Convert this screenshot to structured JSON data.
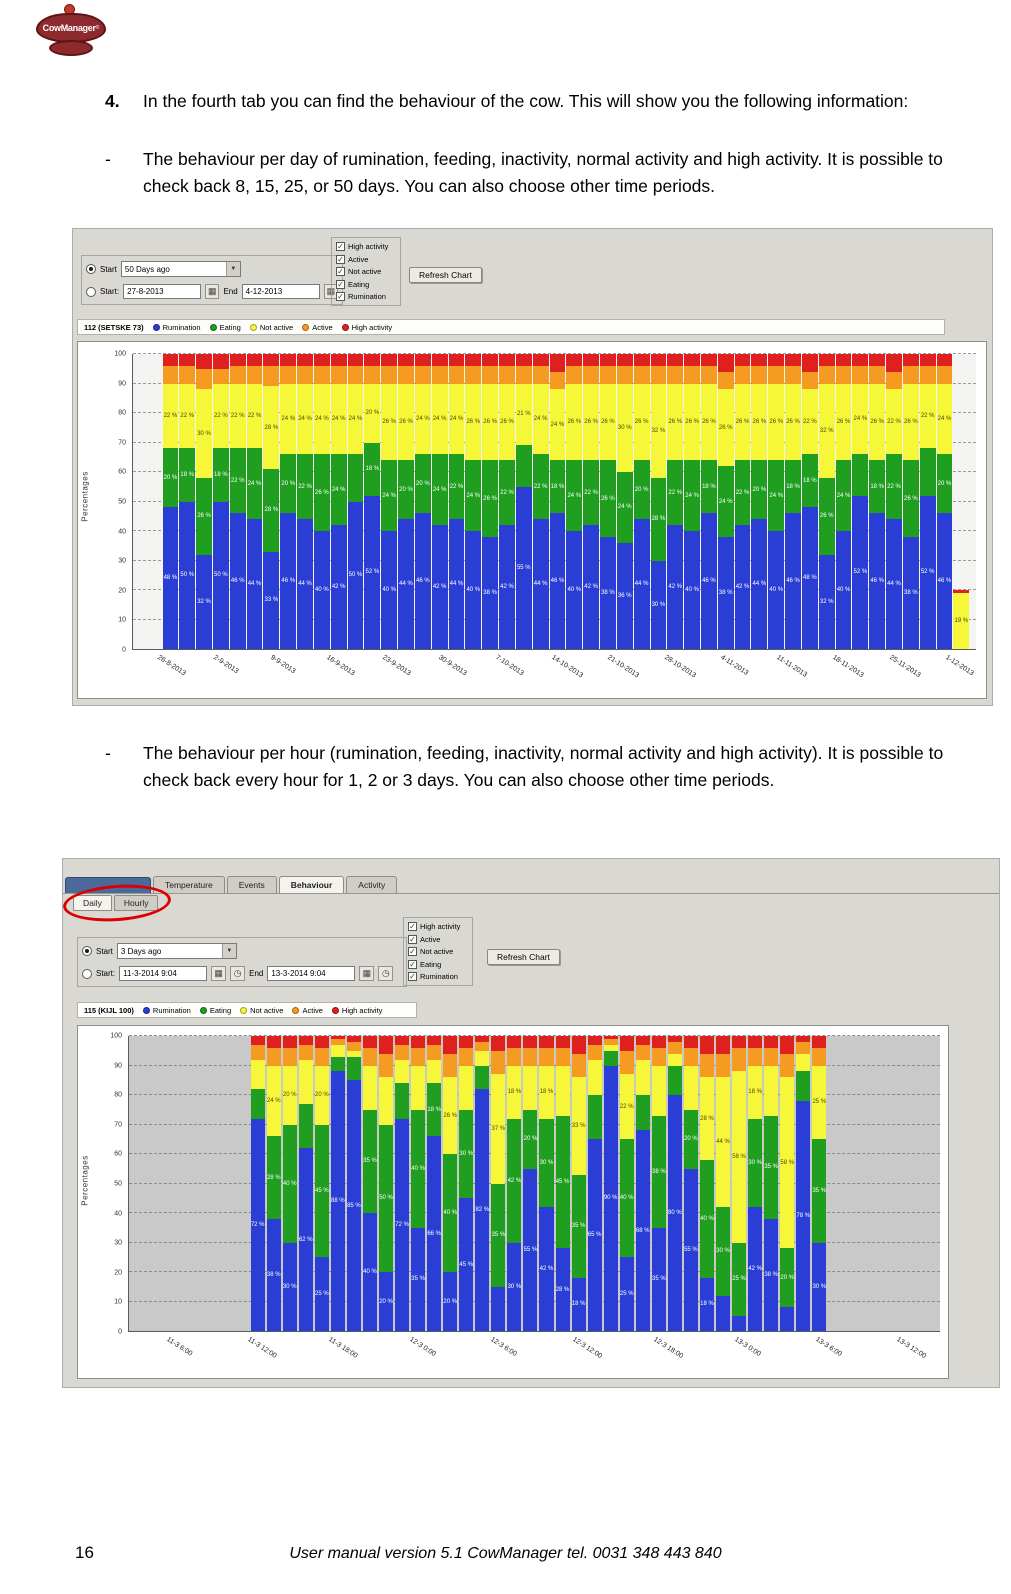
{
  "page": {
    "number": "16",
    "footer_text": "User manual version 5.1 CowManager tel. 0031 348 443 840"
  },
  "logo": {
    "text": "CowManager",
    "registered": "®"
  },
  "icons": {
    "checkmark": "✓",
    "dropdown_arrow": "▼",
    "calendar": "▦",
    "clock": "◷"
  },
  "step4": {
    "number": "4.",
    "dash": "-",
    "text": "In the fourth tab you can find the behaviour of the cow. This will show you the following information:",
    "bullet1": "The behaviour per day of rumination, feeding, inactivity, normal activity and high activity. It is possible to check back 8, 15, 25, or 50 days. You can also choose other time periods.",
    "bullet2": "The behaviour per hour (rumination, feeding, inactivity, normal activity and high activity). It is possible to check back every hour for 1, 2 or 3 days. You can also choose other time periods."
  },
  "daily_screenshot": {
    "period": {
      "radio_label": "Start",
      "period_value": "50 Days ago",
      "start_label": "Start:",
      "start_value": "27-8-2013",
      "end_label": "End",
      "end_value": "4-12-2013"
    },
    "filters": [
      "High activity",
      "Active",
      "Not active",
      "Eating",
      "Rumination"
    ],
    "refresh_button": "Refresh Chart",
    "legend_title": "112 (SETSKE 73)",
    "legend_items": [
      "Rumination",
      "Eating",
      "Not active",
      "Active",
      "High activity"
    ]
  },
  "hourly_screenshot": {
    "tabs": [
      "Temperature",
      "Events",
      "Behaviour",
      "Activity"
    ],
    "subtabs": [
      "Daily",
      "Hourly"
    ],
    "period": {
      "radio_label": "Start",
      "period_value": "3 Days ago",
      "start_label": "Start:",
      "start_value": "11-3-2014 9:04",
      "end_label": "End",
      "end_value": "13-3-2014 9:04"
    },
    "filters": [
      "High activity",
      "Active",
      "Not active",
      "Eating",
      "Rumination"
    ],
    "refresh_button": "Refresh Chart",
    "legend_title": "115 (KIJL 100)",
    "legend_items": [
      "Rumination",
      "Eating",
      "Not active",
      "Active",
      "High activity"
    ]
  },
  "chart_data": [
    {
      "type": "bar",
      "stacked": true,
      "title": "112 (SETSKE 73) — behaviour per day",
      "xlabel": "",
      "ylabel": "Percentages",
      "ylim": [
        0,
        100
      ],
      "yticks": [
        0,
        10,
        20,
        30,
        40,
        50,
        60,
        70,
        80,
        90,
        100
      ],
      "grid": true,
      "legend_position": "top",
      "xticklabels": [
        "26-8-2013",
        "2-9-2013",
        "9-9-2013",
        "16-9-2013",
        "23-9-2013",
        "30-9-2013",
        "7-10-2013",
        "14-10-2013",
        "21-10-2013",
        "28-10-2013",
        "4-11-2013",
        "11-11-2013",
        "18-11-2013",
        "25-11-2013",
        "1-12-2013"
      ],
      "series": [
        {
          "name": "Rumination",
          "slug": "rumination",
          "color": "#2a3ed6",
          "label_color": "#ffffff",
          "values": [
            48,
            50,
            32,
            50,
            46,
            44,
            33,
            46,
            44,
            40,
            42,
            50,
            52,
            40,
            44,
            46,
            42,
            44,
            40,
            38,
            42,
            55,
            44,
            46,
            40,
            42,
            38,
            36,
            44,
            30,
            42,
            40,
            46,
            38,
            42,
            44,
            40,
            46,
            48,
            32,
            40,
            52,
            46,
            44,
            38,
            52,
            46,
            0
          ]
        },
        {
          "name": "Eating",
          "slug": "eating",
          "color": "#1f9e1f",
          "label_color": "#ffffff",
          "values": [
            20,
            18,
            26,
            18,
            22,
            24,
            28,
            20,
            22,
            26,
            24,
            16,
            18,
            24,
            20,
            20,
            24,
            22,
            24,
            26,
            22,
            14,
            22,
            18,
            24,
            22,
            26,
            24,
            20,
            28,
            22,
            24,
            18,
            24,
            22,
            20,
            24,
            18,
            18,
            26,
            24,
            14,
            18,
            22,
            26,
            16,
            20,
            0
          ]
        },
        {
          "name": "Not active",
          "slug": "not-active",
          "color": "#f7f73a",
          "label_color": "#4a4a00",
          "values": [
            22,
            22,
            30,
            22,
            22,
            22,
            28,
            24,
            24,
            24,
            24,
            24,
            20,
            26,
            26,
            24,
            24,
            24,
            26,
            26,
            26,
            21,
            24,
            24,
            26,
            26,
            26,
            30,
            26,
            32,
            26,
            26,
            26,
            26,
            26,
            26,
            26,
            26,
            22,
            32,
            26,
            24,
            26,
            22,
            26,
            22,
            24,
            19
          ]
        },
        {
          "name": "Active",
          "slug": "active",
          "color": "#f59b22",
          "label_color": "#5a3000",
          "values": [
            6,
            6,
            7,
            5,
            6,
            6,
            7,
            6,
            6,
            6,
            6,
            6,
            6,
            6,
            6,
            6,
            6,
            6,
            6,
            6,
            6,
            6,
            6,
            6,
            6,
            6,
            6,
            6,
            6,
            6,
            6,
            6,
            6,
            6,
            6,
            6,
            6,
            6,
            6,
            6,
            6,
            6,
            6,
            6,
            6,
            6,
            6,
            0
          ]
        },
        {
          "name": "High activity",
          "slug": "high-activity",
          "color": "#e01f1f",
          "label_color": "#ffffff",
          "values": [
            4,
            4,
            5,
            5,
            4,
            4,
            4,
            4,
            4,
            4,
            4,
            4,
            4,
            4,
            4,
            4,
            4,
            4,
            4,
            4,
            4,
            4,
            4,
            6,
            4,
            4,
            4,
            4,
            4,
            4,
            4,
            4,
            4,
            6,
            4,
            4,
            4,
            4,
            6,
            4,
            4,
            4,
            4,
            6,
            4,
            4,
            4,
            1
          ]
        }
      ]
    },
    {
      "type": "bar",
      "stacked": true,
      "title": "115 (KIJL 100) — behaviour per hour",
      "xlabel": "",
      "ylabel": "Percentages",
      "ylim": [
        0,
        100
      ],
      "yticks": [
        0,
        10,
        20,
        30,
        40,
        50,
        60,
        70,
        80,
        90,
        100
      ],
      "grid": true,
      "legend_position": "top",
      "xticklabels": [
        "11-3 6:00",
        "11-3 12:00",
        "11-3 18:00",
        "12-3 0:00",
        "12-3 6:00",
        "12-3 12:00",
        "12-3 18:00",
        "13-3 0:00",
        "13-3 6:00",
        "13-3 12:00"
      ],
      "series": [
        {
          "name": "Rumination",
          "slug": "rumination",
          "color": "#2a3ed6",
          "label_color": "#ffffff",
          "values": [
            72,
            38,
            30,
            62,
            25,
            88,
            85,
            40,
            20,
            72,
            35,
            66,
            20,
            45,
            82,
            15,
            30,
            55,
            42,
            28,
            18,
            65,
            90,
            25,
            68,
            35,
            80,
            55,
            18,
            12,
            5,
            42,
            38,
            8,
            78,
            30
          ]
        },
        {
          "name": "Eating",
          "slug": "eating",
          "color": "#1f9e1f",
          "label_color": "#ffffff",
          "values": [
            10,
            28,
            40,
            15,
            45,
            5,
            8,
            35,
            50,
            12,
            40,
            18,
            40,
            30,
            8,
            35,
            42,
            20,
            30,
            45,
            35,
            15,
            5,
            40,
            12,
            38,
            10,
            20,
            40,
            30,
            25,
            30,
            35,
            20,
            10,
            35
          ]
        },
        {
          "name": "Not active",
          "slug": "not-active",
          "color": "#f7f73a",
          "label_color": "#4a4a00",
          "values": [
            10,
            24,
            20,
            15,
            20,
            4,
            2,
            15,
            16,
            8,
            15,
            8,
            26,
            15,
            5,
            37,
            18,
            15,
            18,
            17,
            33,
            12,
            2,
            22,
            12,
            17,
            4,
            15,
            28,
            44,
            58,
            18,
            17,
            58,
            6,
            25
          ]
        },
        {
          "name": "Active",
          "slug": "active",
          "color": "#f59b22",
          "label_color": "#5a3000",
          "values": [
            5,
            6,
            6,
            5,
            6,
            2,
            3,
            6,
            8,
            5,
            6,
            5,
            8,
            6,
            3,
            8,
            6,
            6,
            6,
            6,
            8,
            5,
            2,
            8,
            5,
            6,
            4,
            6,
            8,
            8,
            8,
            6,
            6,
            8,
            4,
            6
          ]
        },
        {
          "name": "High activity",
          "slug": "high-activity",
          "color": "#e01f1f",
          "label_color": "#ffffff",
          "values": [
            3,
            4,
            4,
            3,
            4,
            1,
            2,
            4,
            6,
            3,
            4,
            3,
            6,
            4,
            2,
            5,
            4,
            4,
            4,
            4,
            6,
            3,
            1,
            5,
            3,
            4,
            2,
            4,
            6,
            6,
            4,
            4,
            4,
            6,
            2,
            4
          ]
        }
      ]
    }
  ]
}
